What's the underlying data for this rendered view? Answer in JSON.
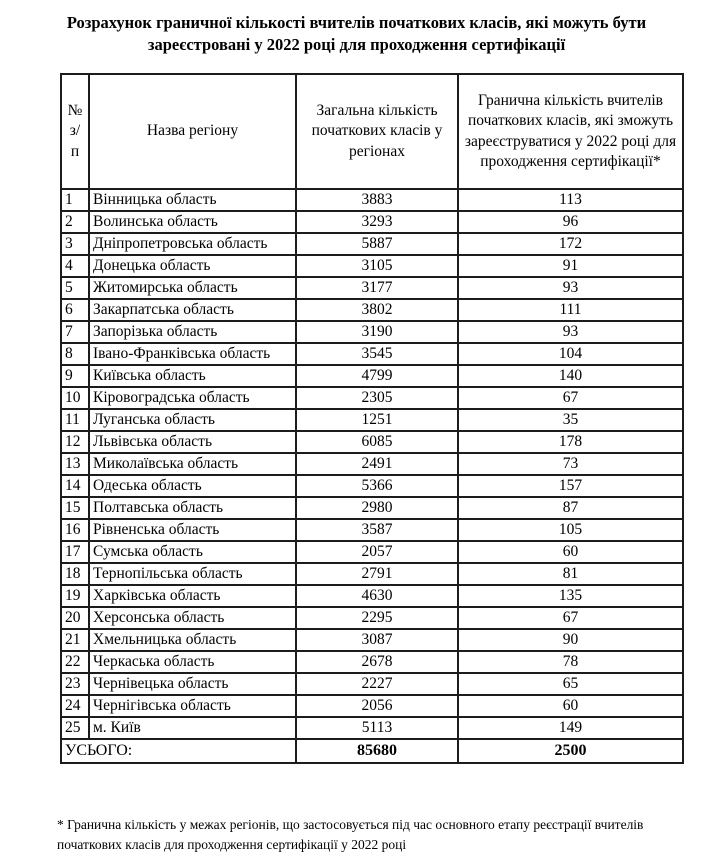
{
  "page": {
    "title": "Розрахунок граничної кількості вчителів початкових класів, які можуть бути зареєстровані у 2022 році для проходження сертифікації",
    "footnote": "* Гранична кількість у межах регіонів, що застосовується під час основного етапу реєстрації вчителів початкових класів для проходження сертифікації у 2022 році"
  },
  "table": {
    "headers": [
      "№ з/п",
      "Назва регіону",
      "Загальна кількість початкових класів у регіонах",
      "Гранична кількість вчителів початкових класів, які зможуть зареєструватися у 2022 році для проходження сертифікації*"
    ],
    "rows": [
      [
        "1",
        "Вінницька область",
        "3883",
        "113"
      ],
      [
        "2",
        "Волинська область",
        "3293",
        "96"
      ],
      [
        "3",
        "Дніпропетровська область",
        "5887",
        "172"
      ],
      [
        "4",
        "Донецька область",
        "3105",
        "91"
      ],
      [
        "5",
        "Житомирська область",
        "3177",
        "93"
      ],
      [
        "6",
        "Закарпатська область",
        "3802",
        "111"
      ],
      [
        "7",
        "Запорізька область",
        "3190",
        "93"
      ],
      [
        "8",
        "Івано-Франківська область",
        "3545",
        "104"
      ],
      [
        "9",
        "Київська область",
        "4799",
        "140"
      ],
      [
        "10",
        "Кіровоградська область",
        "2305",
        "67"
      ],
      [
        "11",
        "Луганська область",
        "1251",
        "35"
      ],
      [
        "12",
        "Львівська область",
        "6085",
        "178"
      ],
      [
        "13",
        "Миколаївська область",
        "2491",
        "73"
      ],
      [
        "14",
        "Одеська область",
        "5366",
        "157"
      ],
      [
        "15",
        "Полтавська область",
        "2980",
        "87"
      ],
      [
        "16",
        "Рівненська область",
        "3587",
        "105"
      ],
      [
        "17",
        "Сумська область",
        "2057",
        "60"
      ],
      [
        "18",
        "Тернопільська область",
        "2791",
        "81"
      ],
      [
        "19",
        "Харківська область",
        "4630",
        "135"
      ],
      [
        "20",
        "Херсонська область",
        "2295",
        "67"
      ],
      [
        "21",
        "Хмельницька область",
        "3087",
        "90"
      ],
      [
        "22",
        "Черкаська область",
        "2678",
        "78"
      ],
      [
        "23",
        "Чернівецька область",
        "2227",
        "65"
      ],
      [
        "24",
        "Чернігівська область",
        "2056",
        "60"
      ],
      [
        "25",
        "м. Київ",
        "5113",
        "149"
      ]
    ],
    "total": {
      "label": "УСЬОГО:",
      "classes_total": "85680",
      "limit_total": "2500"
    }
  }
}
